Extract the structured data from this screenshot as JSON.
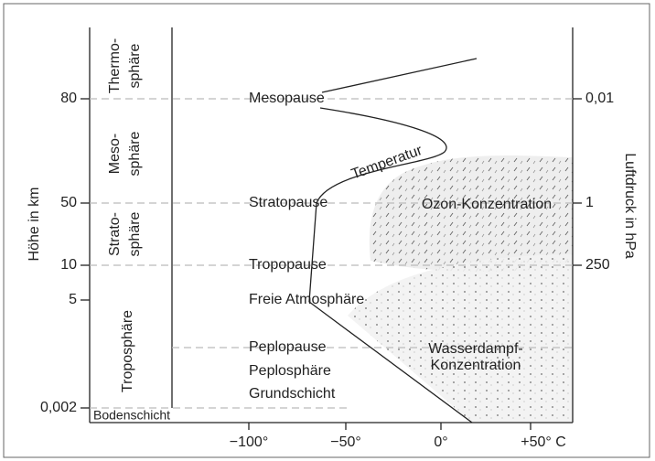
{
  "left_axis": {
    "title": "Höhe in km",
    "ticks": [
      "80",
      "50",
      "10",
      "5",
      "0,002"
    ]
  },
  "right_axis": {
    "title": "Luftdruck in hPa",
    "ticks": [
      "0,01",
      "1",
      "250"
    ]
  },
  "bottom_axis": {
    "ticks": [
      "−100°",
      "−50°",
      "0°",
      "+50° C"
    ]
  },
  "layers": [
    [
      "Thermo-",
      "sphäre"
    ],
    [
      "Meso-",
      "sphäre"
    ],
    [
      "Strato-",
      "sphäre"
    ],
    [
      "Troposphäre"
    ],
    [
      "Bodenschicht"
    ]
  ],
  "levels": [
    "Mesopause",
    "Stratopause",
    "Tropopause",
    "Freie Atmosphäre",
    "Peplopause",
    "Peplosphäre",
    "Grundschicht"
  ],
  "curve_label": "Temperatur",
  "regions": [
    [
      "Ozon-Konzentration"
    ],
    [
      "Wasserdampf-",
      "Konzentration"
    ]
  ]
}
